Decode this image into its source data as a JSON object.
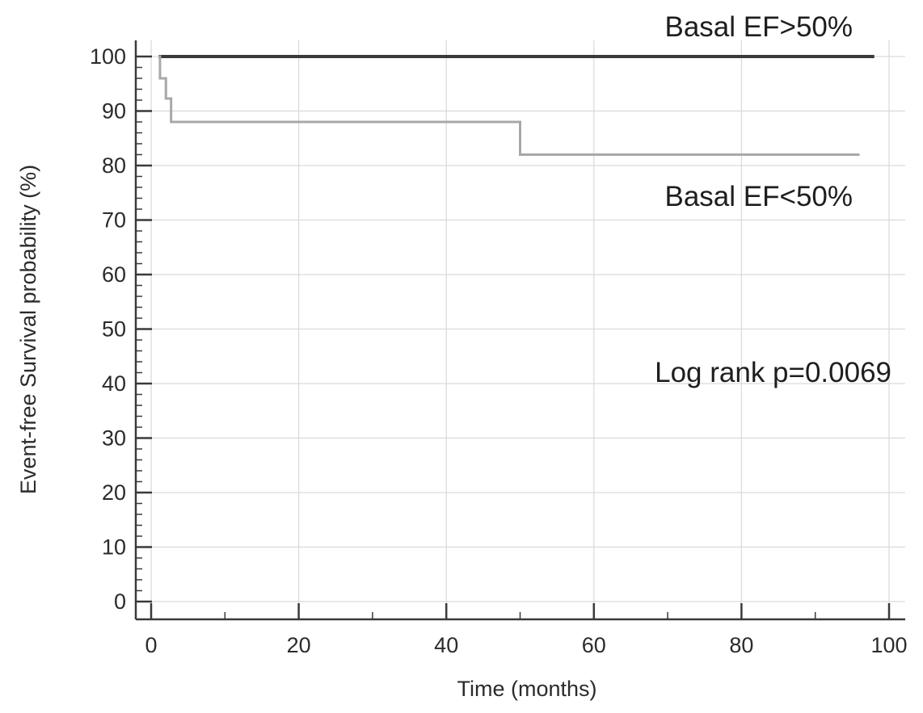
{
  "chart_data": {
    "type": "line",
    "xlabel": "Time (months)",
    "ylabel": "Event-free Survival probability (%)",
    "xlim": [
      0,
      100
    ],
    "ylim": [
      0,
      100
    ],
    "xticks": [
      0,
      20,
      40,
      60,
      80,
      100
    ],
    "yticks": [
      0,
      10,
      20,
      30,
      40,
      50,
      60,
      70,
      80,
      90,
      100
    ],
    "grid": true,
    "step": true,
    "series": [
      {
        "name": "Basal EF>50%",
        "color": "#3a3a3a",
        "x": [
          1,
          98
        ],
        "y": [
          100,
          100
        ]
      },
      {
        "name": "Basal EF<50%",
        "color": "#a8a8a8",
        "x": [
          1,
          1.2,
          2,
          2.7,
          50,
          96
        ],
        "y": [
          100,
          96,
          92.3,
          88,
          82,
          82
        ]
      }
    ],
    "annotations": [
      {
        "id": "label_high",
        "text": "Basal EF>50%"
      },
      {
        "id": "label_low",
        "text": "Basal EF<50%"
      },
      {
        "id": "logrank",
        "text": "Log rank p=0.0069"
      }
    ]
  }
}
